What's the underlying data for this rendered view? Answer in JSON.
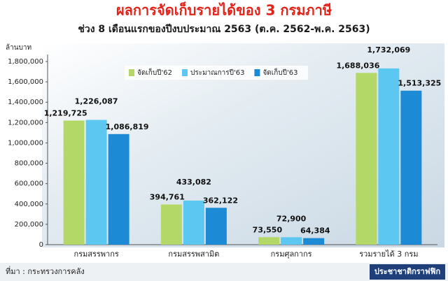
{
  "chart_data": {
    "type": "bar",
    "title": "ผลการจัดเก็บรายได้ของ 3 กรมภาษี",
    "subtitle": "ช่วง 8 เดือนแรกของปีงบประมาณ 2563 (ต.ค. 2562-พ.ค. 2563)",
    "y_label": "ล้านบาท",
    "categories": [
      "กรมสรรพากร",
      "กรมสรรพสามิต",
      "กรมศุลกากร",
      "รวมรายได้ 3 กรม"
    ],
    "series": [
      {
        "name": "จัดเก็บปี'62",
        "color": "#b3d868",
        "values": [
          1219725,
          394761,
          73550,
          1688036
        ],
        "value_labels": [
          "1,219,725",
          "394,761",
          "73,550",
          "1,688,036"
        ]
      },
      {
        "name": "ประมาณการปี'63",
        "color": "#5cc8f2",
        "values": [
          1226087,
          433082,
          72900,
          1732069
        ],
        "value_labels": [
          "1,226,087",
          "433,082",
          "72,900",
          "1,732,069"
        ]
      },
      {
        "name": "จัดเก็บปี'63",
        "color": "#1c8ad4",
        "values": [
          1086819,
          362122,
          64384,
          1513325
        ],
        "value_labels": [
          "1,086,819",
          "362,122",
          "64,384",
          "1,513,325"
        ]
      }
    ],
    "ylim": [
      0,
      1800000
    ],
    "yticks": [
      0,
      {
        "value": 200000,
        "label": "200,000"
      },
      {
        "value": 400000,
        "label": "400,000"
      },
      {
        "value": 600000,
        "label": "600,000"
      },
      {
        "value": 800000,
        "label": "800,000"
      },
      {
        "value": 1000000,
        "label": "1,000,000"
      },
      {
        "value": 1200000,
        "label": "1,200,000"
      },
      {
        "value": 1400000,
        "label": "1,400,000"
      },
      {
        "value": 1600000,
        "label": "1,600,000"
      },
      {
        "value": 1800000,
        "label": "1,800,000"
      }
    ],
    "legend": "top-left",
    "source": "ที่มา : กระทรวงการคลัง",
    "credit": "ประชาชาติกราฟฟิก"
  }
}
